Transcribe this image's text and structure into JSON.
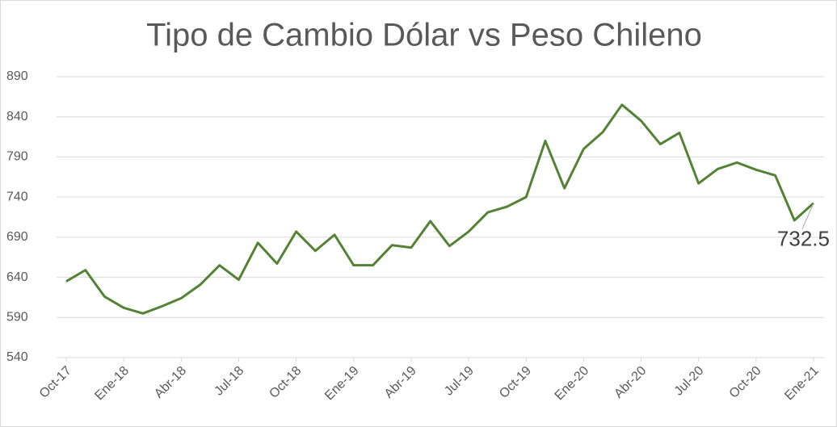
{
  "chart_data": {
    "type": "line",
    "title": "Tipo de Cambio Dólar vs Peso Chileno",
    "categories": [
      "Oct-17",
      null,
      null,
      "Ene-18",
      null,
      null,
      "Abr-18",
      null,
      null,
      "Jul-18",
      null,
      null,
      "Oct-18",
      null,
      null,
      "Ene-19",
      null,
      null,
      "Abr-19",
      null,
      null,
      "Jul-19",
      null,
      null,
      "Oct-19",
      null,
      null,
      "Ene-20",
      null,
      null,
      "Abr-20",
      null,
      null,
      "Jul-20",
      null,
      null,
      "Oct-20",
      null,
      null,
      "Ene-21"
    ],
    "series": [
      {
        "name": "Tipo de Cambio",
        "color": "#548235",
        "values": [
          635,
          649,
          616,
          602,
          595,
          604,
          614,
          631,
          655,
          637,
          683,
          657,
          697,
          673,
          693,
          655,
          655,
          680,
          677,
          710,
          679,
          697,
          721,
          728,
          740,
          810,
          751,
          800,
          821,
          855,
          835,
          806,
          820,
          757,
          775,
          783,
          774,
          767,
          711,
          732.5
        ]
      }
    ],
    "ylim": [
      540,
      890
    ],
    "yticks": [
      540,
      590,
      640,
      690,
      740,
      790,
      840,
      890
    ],
    "grid": true
  }
}
